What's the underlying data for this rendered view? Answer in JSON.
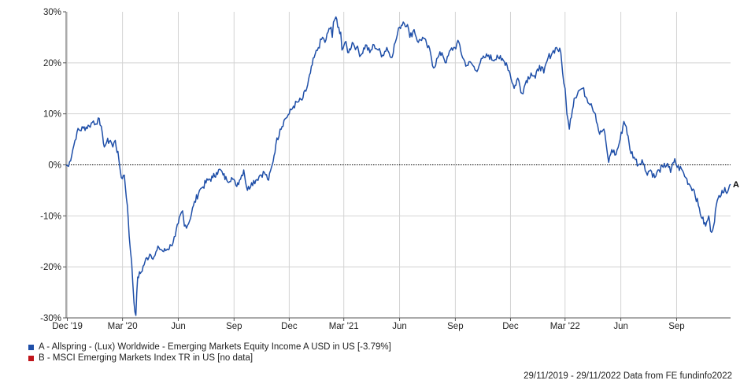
{
  "chart_data": {
    "type": "line",
    "title": "",
    "xlabel": "",
    "ylabel": "",
    "ylim": [
      -30,
      30
    ],
    "y_ticks": [
      30,
      20,
      10,
      0,
      -10,
      -20,
      -30
    ],
    "y_tick_format": "percent",
    "x_range": [
      "2019-11-29",
      "2022-11-29"
    ],
    "x_ticks": [
      {
        "label": "Dec '19",
        "date": "2019-12-01"
      },
      {
        "label": "Mar '20",
        "date": "2020-03-01"
      },
      {
        "label": "Jun",
        "date": "2020-06-01"
      },
      {
        "label": "Sep",
        "date": "2020-09-01"
      },
      {
        "label": "Dec",
        "date": "2020-12-01"
      },
      {
        "label": "Mar '21",
        "date": "2021-03-01"
      },
      {
        "label": "Jun",
        "date": "2021-06-01"
      },
      {
        "label": "Sep",
        "date": "2021-09-01"
      },
      {
        "label": "Dec",
        "date": "2021-12-01"
      },
      {
        "label": "Mar '22",
        "date": "2022-03-01"
      },
      {
        "label": "Jun",
        "date": "2022-06-01"
      },
      {
        "label": "Sep",
        "date": "2022-09-01"
      }
    ],
    "grid": true,
    "zero_line": "dotted",
    "legend_position": "bottom-left",
    "series": [
      {
        "label": "A",
        "color": "#1f4fa8",
        "points": [
          [
            "2019-11-29",
            0
          ],
          [
            "2019-12-03",
            -0.3
          ],
          [
            "2019-12-10",
            3
          ],
          [
            "2019-12-17",
            6.5
          ],
          [
            "2019-12-27",
            7.2
          ],
          [
            "2020-01-06",
            7.6
          ],
          [
            "2020-01-13",
            8.6
          ],
          [
            "2020-01-17",
            8
          ],
          [
            "2020-01-21",
            9.2
          ],
          [
            "2020-01-24",
            7.8
          ],
          [
            "2020-01-28",
            6
          ],
          [
            "2020-01-31",
            3.5
          ],
          [
            "2020-02-04",
            4.5
          ],
          [
            "2020-02-10",
            4.8
          ],
          [
            "2020-02-14",
            3.5
          ],
          [
            "2020-02-18",
            4.8
          ],
          [
            "2020-02-24",
            1
          ],
          [
            "2020-02-28",
            -2.5
          ],
          [
            "2020-03-04",
            -2
          ],
          [
            "2020-03-09",
            -8
          ],
          [
            "2020-03-12",
            -14
          ],
          [
            "2020-03-16",
            -19
          ],
          [
            "2020-03-20",
            -27
          ],
          [
            "2020-03-23",
            -29.5
          ],
          [
            "2020-03-26",
            -22
          ],
          [
            "2020-04-01",
            -21
          ],
          [
            "2020-04-07",
            -19
          ],
          [
            "2020-04-15",
            -17.5
          ],
          [
            "2020-04-22",
            -18
          ],
          [
            "2020-04-30",
            -16.2
          ],
          [
            "2020-05-08",
            -17
          ],
          [
            "2020-05-14",
            -16.5
          ],
          [
            "2020-05-20",
            -15.8
          ],
          [
            "2020-05-27",
            -14
          ],
          [
            "2020-06-01",
            -11.5
          ],
          [
            "2020-06-08",
            -9
          ],
          [
            "2020-06-11",
            -12
          ],
          [
            "2020-06-18",
            -11.5
          ],
          [
            "2020-06-26",
            -8
          ],
          [
            "2020-07-06",
            -5
          ],
          [
            "2020-07-10",
            -4.5
          ],
          [
            "2020-07-20",
            -3
          ],
          [
            "2020-07-28",
            -2.5
          ],
          [
            "2020-08-03",
            -1.5
          ],
          [
            "2020-08-10",
            -1
          ],
          [
            "2020-08-14",
            -2
          ],
          [
            "2020-08-20",
            -3
          ],
          [
            "2020-08-28",
            -2.5
          ],
          [
            "2020-09-04",
            -4
          ],
          [
            "2020-09-10",
            -3
          ],
          [
            "2020-09-17",
            -1
          ],
          [
            "2020-09-23",
            -5
          ],
          [
            "2020-09-30",
            -3.5
          ],
          [
            "2020-10-07",
            -3
          ],
          [
            "2020-10-14",
            -2
          ],
          [
            "2020-10-21",
            -1.5
          ],
          [
            "2020-10-28",
            -3
          ],
          [
            "2020-11-03",
            0
          ],
          [
            "2020-11-09",
            4
          ],
          [
            "2020-11-16",
            7
          ],
          [
            "2020-11-24",
            9
          ],
          [
            "2020-12-01",
            10
          ],
          [
            "2020-12-08",
            11.5
          ],
          [
            "2020-12-15",
            12.3
          ],
          [
            "2020-12-22",
            12.7
          ],
          [
            "2020-12-30",
            15
          ],
          [
            "2021-01-05",
            18
          ],
          [
            "2021-01-11",
            21
          ],
          [
            "2021-01-18",
            23
          ],
          [
            "2021-01-25",
            25
          ],
          [
            "2021-01-29",
            24
          ],
          [
            "2021-02-03",
            26
          ],
          [
            "2021-02-08",
            27
          ],
          [
            "2021-02-10",
            25
          ],
          [
            "2021-02-12",
            28
          ],
          [
            "2021-02-16",
            29
          ],
          [
            "2021-02-19",
            27
          ],
          [
            "2021-02-24",
            26
          ],
          [
            "2021-02-26",
            22.5
          ],
          [
            "2021-03-03",
            24
          ],
          [
            "2021-03-09",
            22
          ],
          [
            "2021-03-15",
            24
          ],
          [
            "2021-03-22",
            23
          ],
          [
            "2021-03-29",
            21.5
          ],
          [
            "2021-04-06",
            23.5
          ],
          [
            "2021-04-13",
            22
          ],
          [
            "2021-04-20",
            23.5
          ],
          [
            "2021-04-27",
            22.5
          ],
          [
            "2021-05-04",
            21.5
          ],
          [
            "2021-05-11",
            23
          ],
          [
            "2021-05-18",
            21
          ],
          [
            "2021-05-25",
            24
          ],
          [
            "2021-06-01",
            27
          ],
          [
            "2021-06-07",
            28
          ],
          [
            "2021-06-14",
            27.5
          ],
          [
            "2021-06-18",
            25
          ],
          [
            "2021-06-25",
            26.5
          ],
          [
            "2021-07-02",
            24
          ],
          [
            "2021-07-09",
            25
          ],
          [
            "2021-07-16",
            23.5
          ],
          [
            "2021-07-22",
            22
          ],
          [
            "2021-07-27",
            19
          ],
          [
            "2021-08-03",
            21
          ],
          [
            "2021-08-10",
            22
          ],
          [
            "2021-08-17",
            20
          ],
          [
            "2021-08-24",
            22.5
          ],
          [
            "2021-08-31",
            23
          ],
          [
            "2021-09-07",
            24
          ],
          [
            "2021-09-13",
            21
          ],
          [
            "2021-09-20",
            19.5
          ],
          [
            "2021-09-27",
            20
          ],
          [
            "2021-10-05",
            18.5
          ],
          [
            "2021-10-12",
            20
          ],
          [
            "2021-10-19",
            21
          ],
          [
            "2021-10-26",
            21.5
          ],
          [
            "2021-11-02",
            20.5
          ],
          [
            "2021-11-09",
            21.5
          ],
          [
            "2021-11-16",
            20.5
          ],
          [
            "2021-11-24",
            20
          ],
          [
            "2021-11-30",
            18
          ],
          [
            "2021-12-07",
            15
          ],
          [
            "2021-12-13",
            17
          ],
          [
            "2021-12-20",
            14
          ],
          [
            "2021-12-27",
            16.5
          ],
          [
            "2022-01-04",
            18
          ],
          [
            "2022-01-11",
            17
          ],
          [
            "2022-01-18",
            19.5
          ],
          [
            "2022-01-25",
            18
          ],
          [
            "2022-02-01",
            21
          ],
          [
            "2022-02-08",
            22
          ],
          [
            "2022-02-15",
            23
          ],
          [
            "2022-02-22",
            22
          ],
          [
            "2022-02-25",
            18
          ],
          [
            "2022-03-01",
            15
          ],
          [
            "2022-03-04",
            10
          ],
          [
            "2022-03-08",
            7
          ],
          [
            "2022-03-10",
            9
          ],
          [
            "2022-03-16",
            13
          ],
          [
            "2022-03-23",
            14.5
          ],
          [
            "2022-03-30",
            15
          ],
          [
            "2022-04-06",
            13
          ],
          [
            "2022-04-13",
            12
          ],
          [
            "2022-04-20",
            10
          ],
          [
            "2022-04-27",
            6
          ],
          [
            "2022-05-04",
            7
          ],
          [
            "2022-05-09",
            3
          ],
          [
            "2022-05-12",
            0.5
          ],
          [
            "2022-05-17",
            3
          ],
          [
            "2022-05-24",
            2
          ],
          [
            "2022-05-31",
            5
          ],
          [
            "2022-06-06",
            8.5
          ],
          [
            "2022-06-10",
            7.5
          ],
          [
            "2022-06-16",
            3
          ],
          [
            "2022-06-23",
            1.5
          ],
          [
            "2022-06-30",
            0
          ],
          [
            "2022-07-06",
            1
          ],
          [
            "2022-07-13",
            -1.5
          ],
          [
            "2022-07-20",
            -1
          ],
          [
            "2022-07-27",
            -2.5
          ],
          [
            "2022-08-03",
            -1
          ],
          [
            "2022-08-10",
            -0.5
          ],
          [
            "2022-08-17",
            0.3
          ],
          [
            "2022-08-22",
            -1.5
          ],
          [
            "2022-08-29",
            1.2
          ],
          [
            "2022-09-02",
            -0.5
          ],
          [
            "2022-09-09",
            -0.8
          ],
          [
            "2022-09-16",
            -2.5
          ],
          [
            "2022-09-23",
            -4
          ],
          [
            "2022-09-30",
            -5
          ],
          [
            "2022-10-07",
            -8
          ],
          [
            "2022-10-13",
            -10.5
          ],
          [
            "2022-10-19",
            -12
          ],
          [
            "2022-10-24",
            -10
          ],
          [
            "2022-10-27",
            -13
          ],
          [
            "2022-11-01",
            -12
          ],
          [
            "2022-11-04",
            -9
          ],
          [
            "2022-11-10",
            -6
          ],
          [
            "2022-11-15",
            -5
          ],
          [
            "2022-11-21",
            -5.2
          ],
          [
            "2022-11-29",
            -3.79
          ]
        ]
      }
    ],
    "legend": [
      {
        "marker": "A",
        "text": "A - Allspring - (Lux) Worldwide - Emerging Markets Equity Income A USD in US [-3.79%]",
        "color": "#1f4fa8"
      },
      {
        "marker": "B",
        "text": "B - MSCI Emerging Markets Index TR in US [no data]",
        "color": "#c0151b"
      }
    ],
    "end_label": "A"
  },
  "footer": {
    "text": "29/11/2019 - 29/11/2022 Data from FE fundinfo2022"
  }
}
